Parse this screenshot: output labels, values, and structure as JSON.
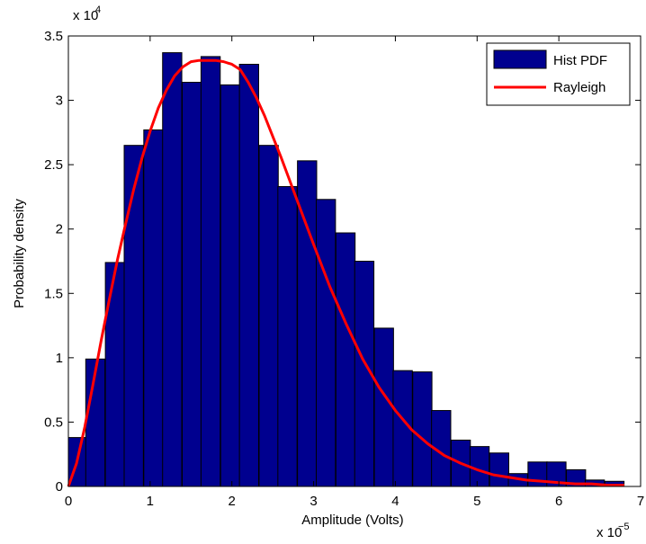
{
  "chart_data": {
    "type": "bar",
    "xlabel": "Amplitude (Volts)",
    "ylabel": "Probability density",
    "x_multiplier": {
      "base": "x 10",
      "exponent": "−5"
    },
    "y_multiplier": {
      "base": "x 10",
      "exponent": "4"
    },
    "xlim": [
      0,
      7
    ],
    "ylim": [
      0,
      3.5
    ],
    "x_ticks": [
      "0",
      "1",
      "2",
      "3",
      "4",
      "5",
      "6",
      "7"
    ],
    "y_ticks": [
      "0",
      "0.5",
      "1",
      "1.5",
      "2",
      "2.5",
      "3",
      "3.5"
    ],
    "legend_position": "top-right",
    "grid": false,
    "colors": {
      "bars": "#00008f",
      "line": "#ff0000"
    },
    "series": [
      {
        "name": "Hist PDF",
        "type": "bar",
        "bin_width": 0.235,
        "x": [
          0.1,
          0.33,
          0.57,
          0.8,
          1.04,
          1.27,
          1.51,
          1.74,
          1.98,
          2.21,
          2.45,
          2.68,
          2.92,
          3.15,
          3.39,
          3.62,
          3.86,
          4.09,
          4.33,
          4.56,
          4.8,
          5.03,
          5.27,
          5.5,
          5.74,
          5.97,
          6.21,
          6.44,
          6.68
        ],
        "values": [
          0.38,
          0.99,
          1.74,
          2.65,
          2.77,
          3.37,
          3.14,
          3.34,
          3.12,
          3.28,
          2.65,
          2.33,
          2.53,
          2.23,
          1.97,
          1.75,
          1.23,
          0.9,
          0.89,
          0.59,
          0.36,
          0.31,
          0.26,
          0.1,
          0.19,
          0.19,
          0.13,
          0.05,
          0.04
        ]
      },
      {
        "name": "Rayleigh",
        "type": "line",
        "x": [
          0,
          0.1,
          0.2,
          0.3,
          0.4,
          0.5,
          0.6,
          0.7,
          0.8,
          0.9,
          1.0,
          1.1,
          1.2,
          1.3,
          1.4,
          1.5,
          1.6,
          1.7,
          1.8,
          1.9,
          2.0,
          2.1,
          2.2,
          2.3,
          2.4,
          2.5,
          2.6,
          2.7,
          2.8,
          2.9,
          3.0,
          3.2,
          3.4,
          3.6,
          3.8,
          4.0,
          4.2,
          4.4,
          4.6,
          4.8,
          5.0,
          5.2,
          5.4,
          5.6,
          5.8,
          6.0,
          6.2,
          6.4,
          6.6,
          6.8
        ],
        "values": [
          0.0,
          0.18,
          0.46,
          0.79,
          1.13,
          1.45,
          1.76,
          2.04,
          2.31,
          2.55,
          2.76,
          2.94,
          3.08,
          3.19,
          3.26,
          3.3,
          3.31,
          3.31,
          3.31,
          3.3,
          3.28,
          3.24,
          3.14,
          3.02,
          2.88,
          2.72,
          2.56,
          2.39,
          2.22,
          2.05,
          1.88,
          1.55,
          1.26,
          0.99,
          0.77,
          0.59,
          0.44,
          0.33,
          0.24,
          0.18,
          0.13,
          0.09,
          0.07,
          0.05,
          0.04,
          0.03,
          0.02,
          0.02,
          0.01,
          0.01
        ]
      }
    ]
  }
}
